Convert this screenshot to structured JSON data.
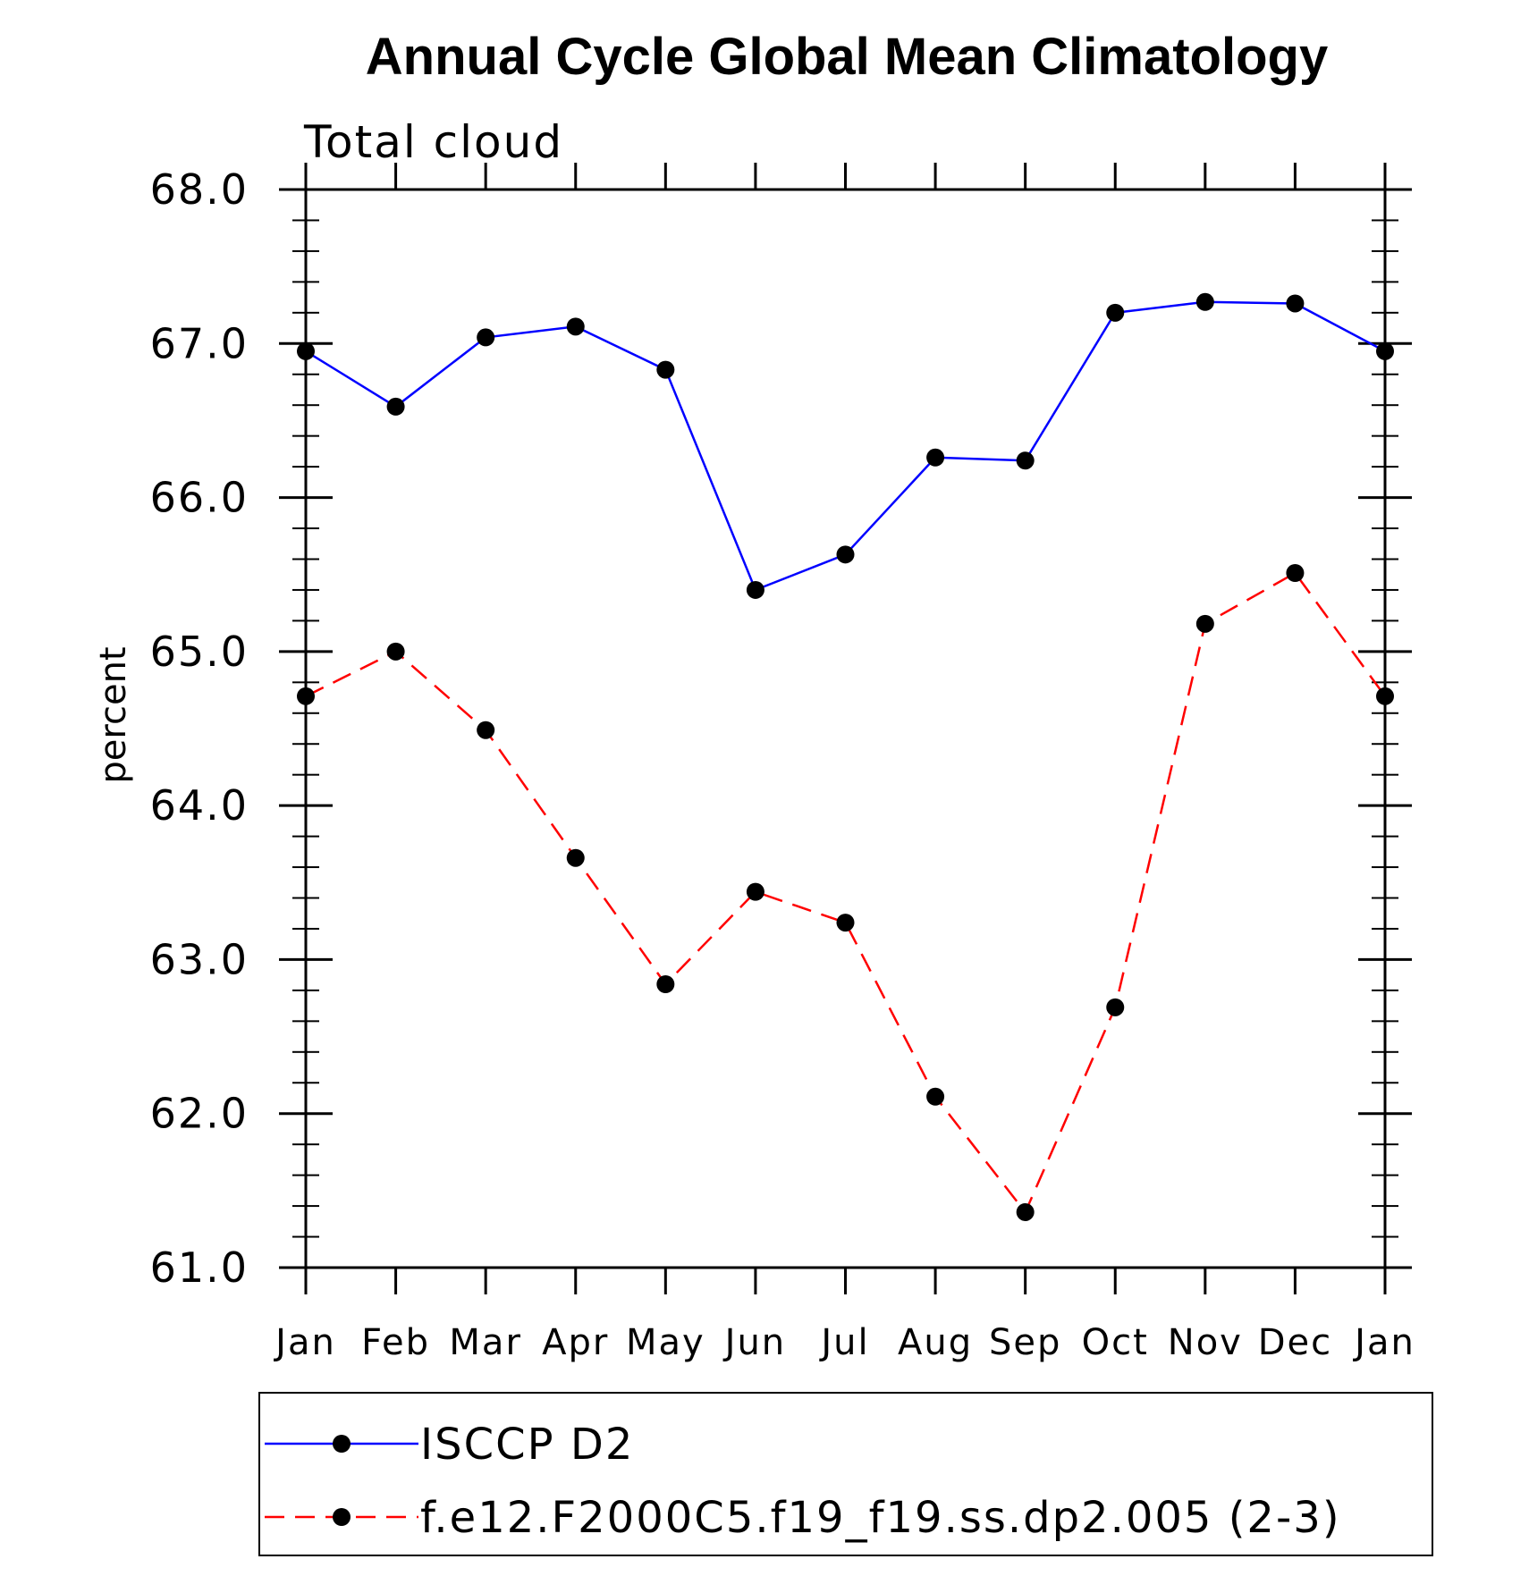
{
  "chart_data": {
    "type": "line",
    "title": "Annual Cycle Global Mean Climatology",
    "subtitle": "Total cloud",
    "ylabel": "percent",
    "xlabel": "",
    "categories": [
      "Jan",
      "Feb",
      "Mar",
      "Apr",
      "May",
      "Jun",
      "Jul",
      "Aug",
      "Sep",
      "Oct",
      "Nov",
      "Dec",
      "Jan"
    ],
    "ylim": [
      61.0,
      68.0
    ],
    "yticks": [
      "61.0",
      "62.0",
      "63.0",
      "64.0",
      "65.0",
      "66.0",
      "67.0",
      "68.0"
    ],
    "grid": false,
    "legend_position": "bottom",
    "series": [
      {
        "name": "ISCCP D2",
        "color": "#0000ff",
        "dash": "solid",
        "marker": "filled-circle",
        "values": [
          66.95,
          66.59,
          67.04,
          67.11,
          66.83,
          65.4,
          65.63,
          66.26,
          66.24,
          67.2,
          67.27,
          67.26,
          66.95
        ]
      },
      {
        "name": "f.e12.F2000C5.f19_f19.ss.dp2.005 (2-3)",
        "color": "#ff0000",
        "dash": "dashed",
        "marker": "filled-circle",
        "values": [
          64.71,
          65.0,
          64.49,
          63.66,
          62.84,
          63.44,
          63.24,
          62.11,
          61.36,
          62.69,
          65.18,
          65.51,
          64.71
        ]
      }
    ]
  }
}
